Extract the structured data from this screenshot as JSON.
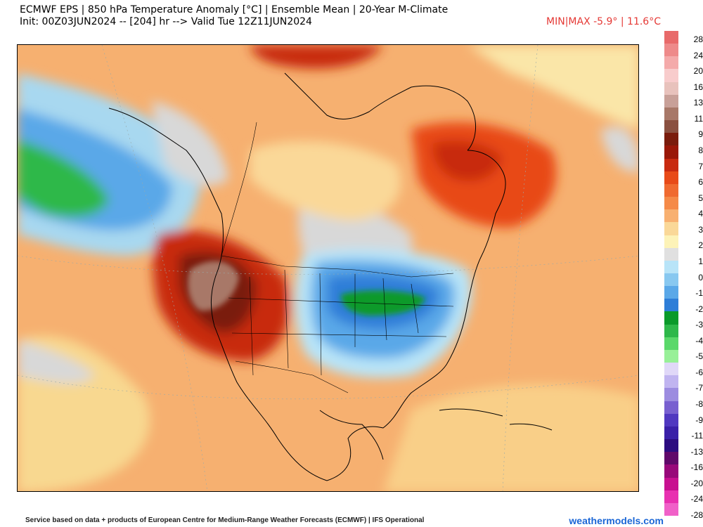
{
  "header": {
    "title_line1": "ECMWF EPS | 850 hPa Temperature Anomaly [°C] | Ensemble Mean | 20-Year M-Climate",
    "title_line2": "Init: 00Z03JUN2024 -- [204] hr --> Valid Tue 12Z11JUN2024",
    "minmax": "MIN|MAX -5.9° | 11.6°C",
    "minmax_color": "#e53935"
  },
  "colorbar": {
    "labels": [
      "28",
      "24",
      "20",
      "16",
      "13",
      "11",
      "9",
      "8",
      "7",
      "6",
      "5",
      "4",
      "3",
      "2",
      "1",
      "0",
      "-1",
      "-2",
      "-3",
      "-4",
      "-5",
      "-6",
      "-7",
      "-8",
      "-9",
      "-11",
      "-13",
      "-16",
      "-20",
      "-24",
      "-28"
    ],
    "colors": [
      "#e86a6a",
      "#ee8a8a",
      "#f4aaaa",
      "#f8cccc",
      "#e8c2bc",
      "#c8a098",
      "#a87868",
      "#8a5040",
      "#7a1c0c",
      "#9a1808",
      "#c82a10",
      "#e84a18",
      "#f06a30",
      "#f58a48",
      "#f8b070",
      "#fad898",
      "#fdf3b8",
      "#e0e0e0",
      "#b8e4f8",
      "#88c8f0",
      "#5aa8e8",
      "#2e7ed8",
      "#0a9a2a",
      "#2eb84a",
      "#5ad86a",
      "#98f098",
      "#e0d8f8",
      "#c0b4f0",
      "#9c8ce0",
      "#7860d0",
      "#5038c0",
      "#3a20a8",
      "#2c0c80",
      "#60086a",
      "#98087a",
      "#c81090",
      "#e830b0",
      "#f060c8"
    ]
  },
  "map": {
    "region": "North America",
    "ocean_anomaly_color": "#f7c070",
    "cold_anomaly_center": "Upper Midwest / Great Lakes",
    "warm_anomaly_center": "Pacific Northwest / Western US"
  },
  "footer": {
    "credit": "Service based on data + products of European Centre for Medium-Range Weather Forecasts (ECMWF) | IFS Operational",
    "site": "weathermodels.com",
    "site_color": "#1a66d6"
  }
}
